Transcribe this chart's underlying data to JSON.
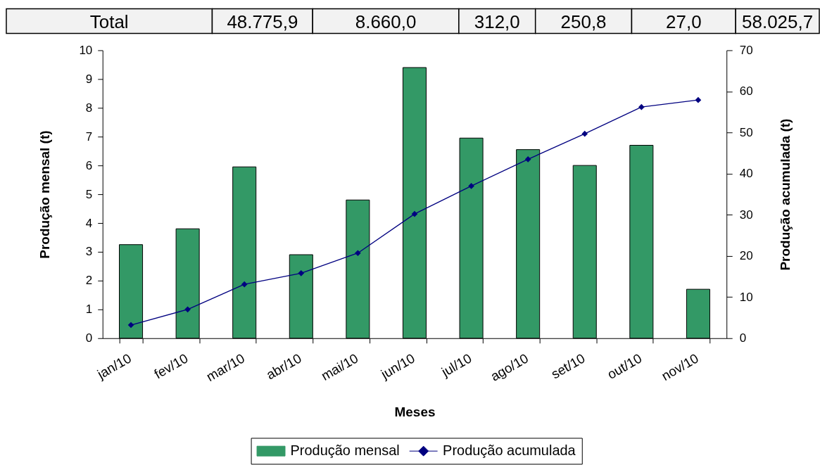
{
  "chart_data": {
    "type": "bar",
    "categories": [
      "jan/10",
      "fev/10",
      "mar/10",
      "abr/10",
      "mai/10",
      "jun/10",
      "jul/10",
      "ago/10",
      "set/10",
      "out/10",
      "nov/10"
    ],
    "series": [
      {
        "name": "Produção mensal",
        "color": "#339966",
        "values": [
          3.25,
          3.8,
          5.95,
          2.9,
          4.8,
          9.4,
          6.95,
          6.55,
          6.0,
          6.7,
          1.7
        ]
      },
      {
        "name": "Produção acumulada",
        "type": "line",
        "axis": "y2",
        "color": "#000080",
        "marker": "diamond",
        "line_style": "solid",
        "values": [
          3.2,
          7.0,
          13.1,
          15.8,
          20.7,
          30.2,
          37.0,
          43.5,
          49.7,
          56.2,
          57.9
        ]
      }
    ],
    "xlabel": "Meses",
    "ylabel": "Produção mensal (t)",
    "y2label": "Produção acumulada (t)",
    "ylim": [
      0,
      10
    ],
    "yticks": [
      0,
      1,
      2,
      3,
      4,
      5,
      6,
      7,
      8,
      9,
      10
    ],
    "y2lim": [
      0,
      70
    ],
    "y2ticks": [
      0,
      10,
      20,
      30,
      40,
      50,
      60,
      70
    ],
    "legend": "bottom",
    "annotations": [
      "Total",
      "48.775,9",
      "8.660,0",
      "312,0",
      "250,8",
      "27,0",
      "58.025,7"
    ]
  }
}
